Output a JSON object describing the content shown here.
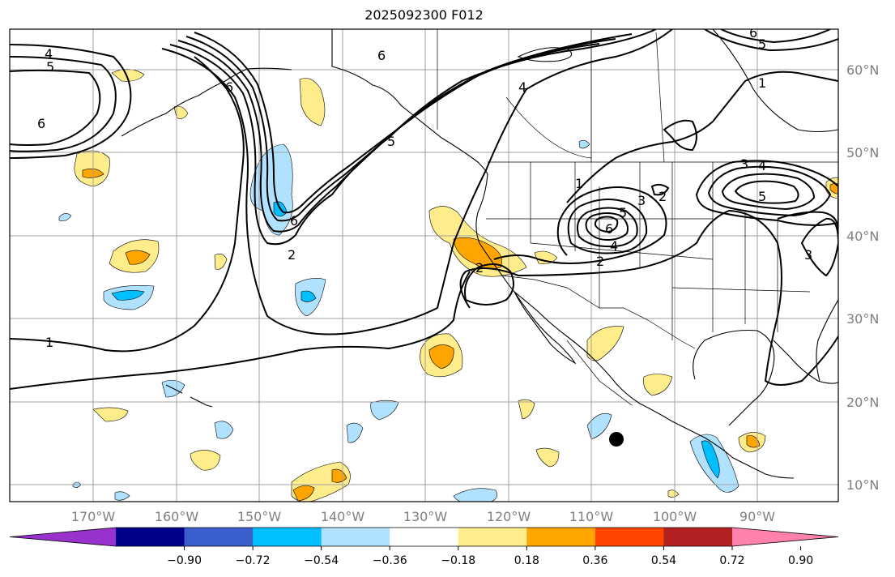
{
  "title": "2025092300 F012",
  "longitude_labels": [
    "170°W",
    "160°W",
    "150°W",
    "140°W",
    "130°W",
    "120°W",
    "110°W",
    "100°W",
    "90°W"
  ],
  "latitude_labels": [
    "60°N",
    "50°N",
    "40°N",
    "30°N",
    "20°N",
    "10°N"
  ],
  "colorbar": {
    "colors": [
      "#9932cc",
      "#00008b",
      "#3a5fcd",
      "#00bfff",
      "#b0e2ff",
      "#ffffff",
      "#ffec8b",
      "#ffa500",
      "#ff4500",
      "#b22222",
      "#ff82ab"
    ],
    "tick_labels": [
      "−0.90",
      "−0.72",
      "−0.54",
      "−0.36",
      "−0.18",
      "0.18",
      "0.36",
      "0.54",
      "0.72",
      "0.90"
    ]
  },
  "contour_labels": [
    {
      "name": "clabel-4-nw",
      "text": "4"
    },
    {
      "name": "clabel-5-nw",
      "text": "5"
    },
    {
      "name": "clabel-6-nw",
      "text": "6"
    },
    {
      "name": "clabel-6-alaska",
      "text": "6"
    },
    {
      "name": "clabel-6-yukon",
      "text": "6"
    },
    {
      "name": "clabel-4-canada",
      "text": "4"
    },
    {
      "name": "clabel-5-bc",
      "text": "5"
    },
    {
      "name": "clabel-6-gulf",
      "text": "6"
    },
    {
      "name": "clabel-2-gulf",
      "text": "2"
    },
    {
      "name": "clabel-1-west",
      "text": "1"
    },
    {
      "name": "clabel-2-calif",
      "text": "2"
    },
    {
      "name": "clabel-1-rockies",
      "text": "1"
    },
    {
      "name": "clabel-3-utah",
      "text": "3"
    },
    {
      "name": "clabel-5-utah",
      "text": "5"
    },
    {
      "name": "clabel-6-utah",
      "text": "6"
    },
    {
      "name": "clabel-4-utah",
      "text": "4"
    },
    {
      "name": "clabel-2-utah",
      "text": "2"
    },
    {
      "name": "clabel-2-plains",
      "text": "2"
    },
    {
      "name": "clabel-3-lakes",
      "text": "3"
    },
    {
      "name": "clabel-4-lakes",
      "text": "4"
    },
    {
      "name": "clabel-5-lakes",
      "text": "5"
    },
    {
      "name": "clabel-1-canada-east",
      "text": "1"
    },
    {
      "name": "clabel-6-ne",
      "text": "6"
    },
    {
      "name": "clabel-5-ne",
      "text": "5"
    },
    {
      "name": "clabel-3-east",
      "text": "3"
    }
  ]
}
